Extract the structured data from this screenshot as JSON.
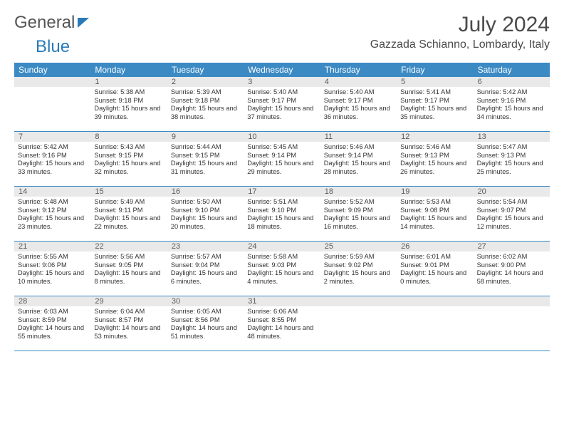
{
  "logo": {
    "part1": "General",
    "part2": "Blue"
  },
  "title": "July 2024",
  "location": "Gazzada Schianno, Lombardy, Italy",
  "colors": {
    "header_bg": "#3b8ac4",
    "header_text": "#ffffff",
    "daynum_bg": "#e9e9e9",
    "border": "#3b8ac4",
    "logo_blue": "#2a7ab8",
    "text": "#333333"
  },
  "day_names": [
    "Sunday",
    "Monday",
    "Tuesday",
    "Wednesday",
    "Thursday",
    "Friday",
    "Saturday"
  ],
  "weeks": [
    [
      {
        "day": "",
        "blank": true
      },
      {
        "day": "1",
        "sunrise": "5:38 AM",
        "sunset": "9:18 PM",
        "daylight": "15 hours and 39 minutes."
      },
      {
        "day": "2",
        "sunrise": "5:39 AM",
        "sunset": "9:18 PM",
        "daylight": "15 hours and 38 minutes."
      },
      {
        "day": "3",
        "sunrise": "5:40 AM",
        "sunset": "9:17 PM",
        "daylight": "15 hours and 37 minutes."
      },
      {
        "day": "4",
        "sunrise": "5:40 AM",
        "sunset": "9:17 PM",
        "daylight": "15 hours and 36 minutes."
      },
      {
        "day": "5",
        "sunrise": "5:41 AM",
        "sunset": "9:17 PM",
        "daylight": "15 hours and 35 minutes."
      },
      {
        "day": "6",
        "sunrise": "5:42 AM",
        "sunset": "9:16 PM",
        "daylight": "15 hours and 34 minutes."
      }
    ],
    [
      {
        "day": "7",
        "sunrise": "5:42 AM",
        "sunset": "9:16 PM",
        "daylight": "15 hours and 33 minutes."
      },
      {
        "day": "8",
        "sunrise": "5:43 AM",
        "sunset": "9:15 PM",
        "daylight": "15 hours and 32 minutes."
      },
      {
        "day": "9",
        "sunrise": "5:44 AM",
        "sunset": "9:15 PM",
        "daylight": "15 hours and 31 minutes."
      },
      {
        "day": "10",
        "sunrise": "5:45 AM",
        "sunset": "9:14 PM",
        "daylight": "15 hours and 29 minutes."
      },
      {
        "day": "11",
        "sunrise": "5:46 AM",
        "sunset": "9:14 PM",
        "daylight": "15 hours and 28 minutes."
      },
      {
        "day": "12",
        "sunrise": "5:46 AM",
        "sunset": "9:13 PM",
        "daylight": "15 hours and 26 minutes."
      },
      {
        "day": "13",
        "sunrise": "5:47 AM",
        "sunset": "9:13 PM",
        "daylight": "15 hours and 25 minutes."
      }
    ],
    [
      {
        "day": "14",
        "sunrise": "5:48 AM",
        "sunset": "9:12 PM",
        "daylight": "15 hours and 23 minutes."
      },
      {
        "day": "15",
        "sunrise": "5:49 AM",
        "sunset": "9:11 PM",
        "daylight": "15 hours and 22 minutes."
      },
      {
        "day": "16",
        "sunrise": "5:50 AM",
        "sunset": "9:10 PM",
        "daylight": "15 hours and 20 minutes."
      },
      {
        "day": "17",
        "sunrise": "5:51 AM",
        "sunset": "9:10 PM",
        "daylight": "15 hours and 18 minutes."
      },
      {
        "day": "18",
        "sunrise": "5:52 AM",
        "sunset": "9:09 PM",
        "daylight": "15 hours and 16 minutes."
      },
      {
        "day": "19",
        "sunrise": "5:53 AM",
        "sunset": "9:08 PM",
        "daylight": "15 hours and 14 minutes."
      },
      {
        "day": "20",
        "sunrise": "5:54 AM",
        "sunset": "9:07 PM",
        "daylight": "15 hours and 12 minutes."
      }
    ],
    [
      {
        "day": "21",
        "sunrise": "5:55 AM",
        "sunset": "9:06 PM",
        "daylight": "15 hours and 10 minutes."
      },
      {
        "day": "22",
        "sunrise": "5:56 AM",
        "sunset": "9:05 PM",
        "daylight": "15 hours and 8 minutes."
      },
      {
        "day": "23",
        "sunrise": "5:57 AM",
        "sunset": "9:04 PM",
        "daylight": "15 hours and 6 minutes."
      },
      {
        "day": "24",
        "sunrise": "5:58 AM",
        "sunset": "9:03 PM",
        "daylight": "15 hours and 4 minutes."
      },
      {
        "day": "25",
        "sunrise": "5:59 AM",
        "sunset": "9:02 PM",
        "daylight": "15 hours and 2 minutes."
      },
      {
        "day": "26",
        "sunrise": "6:01 AM",
        "sunset": "9:01 PM",
        "daylight": "15 hours and 0 minutes."
      },
      {
        "day": "27",
        "sunrise": "6:02 AM",
        "sunset": "9:00 PM",
        "daylight": "14 hours and 58 minutes."
      }
    ],
    [
      {
        "day": "28",
        "sunrise": "6:03 AM",
        "sunset": "8:59 PM",
        "daylight": "14 hours and 55 minutes."
      },
      {
        "day": "29",
        "sunrise": "6:04 AM",
        "sunset": "8:57 PM",
        "daylight": "14 hours and 53 minutes."
      },
      {
        "day": "30",
        "sunrise": "6:05 AM",
        "sunset": "8:56 PM",
        "daylight": "14 hours and 51 minutes."
      },
      {
        "day": "31",
        "sunrise": "6:06 AM",
        "sunset": "8:55 PM",
        "daylight": "14 hours and 48 minutes."
      },
      {
        "day": "",
        "blank": true
      },
      {
        "day": "",
        "blank": true
      },
      {
        "day": "",
        "blank": true
      }
    ]
  ],
  "labels": {
    "sunrise": "Sunrise:",
    "sunset": "Sunset:",
    "daylight": "Daylight:"
  }
}
